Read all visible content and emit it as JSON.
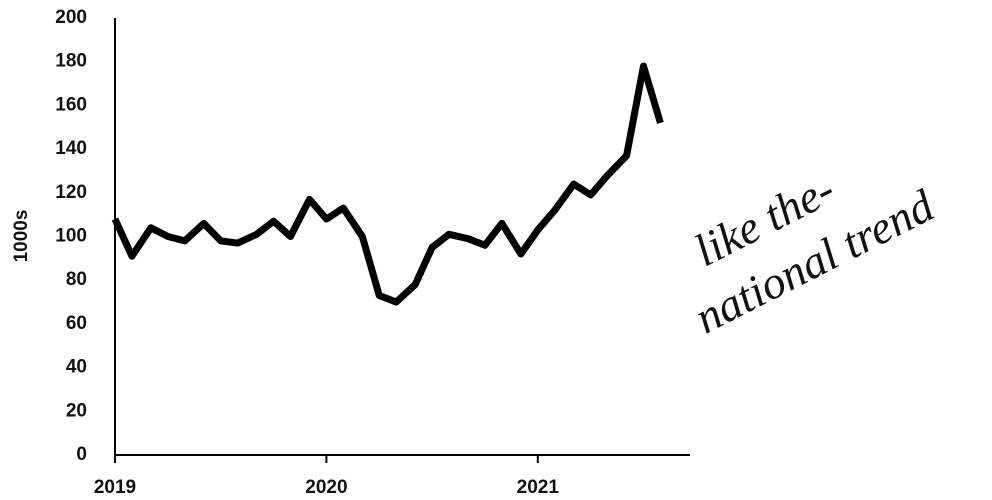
{
  "chart_data": {
    "type": "line",
    "y_label": "1000s",
    "x": [
      2019,
      2019.08,
      2019.17,
      2019.25,
      2019.33,
      2019.42,
      2019.5,
      2019.58,
      2019.67,
      2019.75,
      2019.83,
      2019.92,
      2020,
      2020.08,
      2020.17,
      2020.25,
      2020.33,
      2020.42,
      2020.5,
      2020.58,
      2020.67,
      2020.75,
      2020.83,
      2020.92,
      2021,
      2021.08,
      2021.17,
      2021.25,
      2021.33,
      2021.42,
      2021.5,
      2021.58
    ],
    "series": [
      {
        "color": "#000000",
        "values": [
          108,
          91,
          104,
          100,
          98,
          106,
          98,
          97,
          101,
          107,
          100,
          117,
          108,
          113,
          100,
          73,
          70,
          78,
          95,
          101,
          99,
          96,
          106,
          92,
          103,
          112,
          124,
          119,
          128,
          137,
          178,
          152
        ]
      }
    ],
    "xlim": [
      2019,
      2021.72
    ],
    "xticks": [
      2019,
      2020,
      2021
    ],
    "ylim": [
      0,
      200
    ],
    "yticks": [
      0,
      20,
      40,
      60,
      80,
      100,
      120,
      140,
      160,
      180,
      200
    ],
    "annotations": [
      "like the-",
      "national trend"
    ]
  }
}
